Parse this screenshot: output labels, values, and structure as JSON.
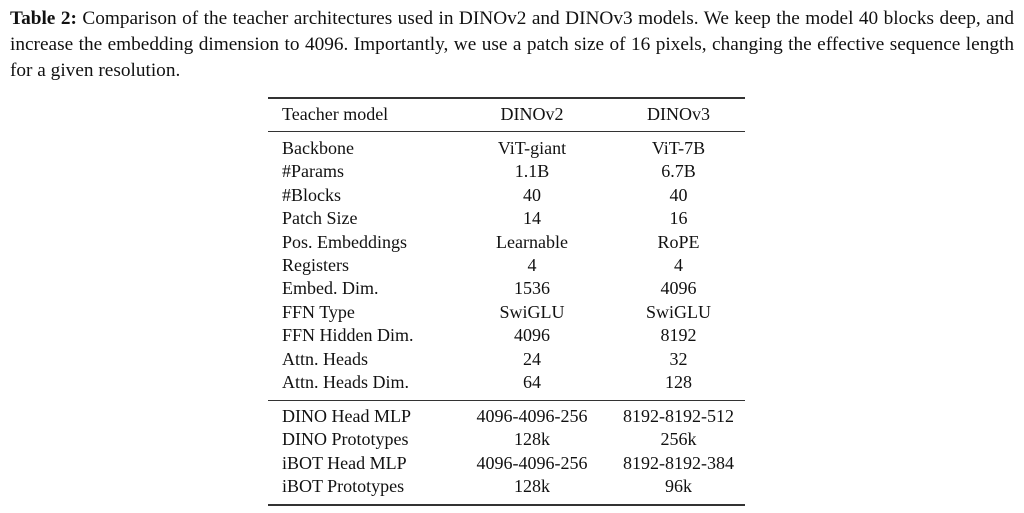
{
  "caption": {
    "label": "Table 2:",
    "text": "Comparison of the teacher architectures used in DINOv2 and DINOv3 models. We keep the model 40 blocks deep, and increase the embedding dimension to 4096. Importantly, we use a patch size of 16 pixels, changing the effective sequence length for a given resolution."
  },
  "table": {
    "headers": [
      "Teacher model",
      "DINOv2",
      "DINOv3"
    ],
    "group1": [
      [
        "Backbone",
        "ViT-giant",
        "ViT-7B"
      ],
      [
        "#Params",
        "1.1B",
        "6.7B"
      ],
      [
        "#Blocks",
        "40",
        "40"
      ],
      [
        "Patch Size",
        "14",
        "16"
      ],
      [
        "Pos. Embeddings",
        "Learnable",
        "RoPE"
      ],
      [
        "Registers",
        "4",
        "4"
      ],
      [
        "Embed. Dim.",
        "1536",
        "4096"
      ],
      [
        "FFN Type",
        "SwiGLU",
        "SwiGLU"
      ],
      [
        "FFN Hidden Dim.",
        "4096",
        "8192"
      ],
      [
        "Attn. Heads",
        "24",
        "32"
      ],
      [
        "Attn. Heads Dim.",
        "64",
        "128"
      ]
    ],
    "group2": [
      [
        "DINO Head MLP",
        "4096-4096-256",
        "8192-8192-512"
      ],
      [
        "DINO Prototypes",
        "128k",
        "256k"
      ],
      [
        "iBOT Head MLP",
        "4096-4096-256",
        "8192-8192-384"
      ],
      [
        "iBOT Prototypes",
        "128k",
        "96k"
      ]
    ]
  }
}
